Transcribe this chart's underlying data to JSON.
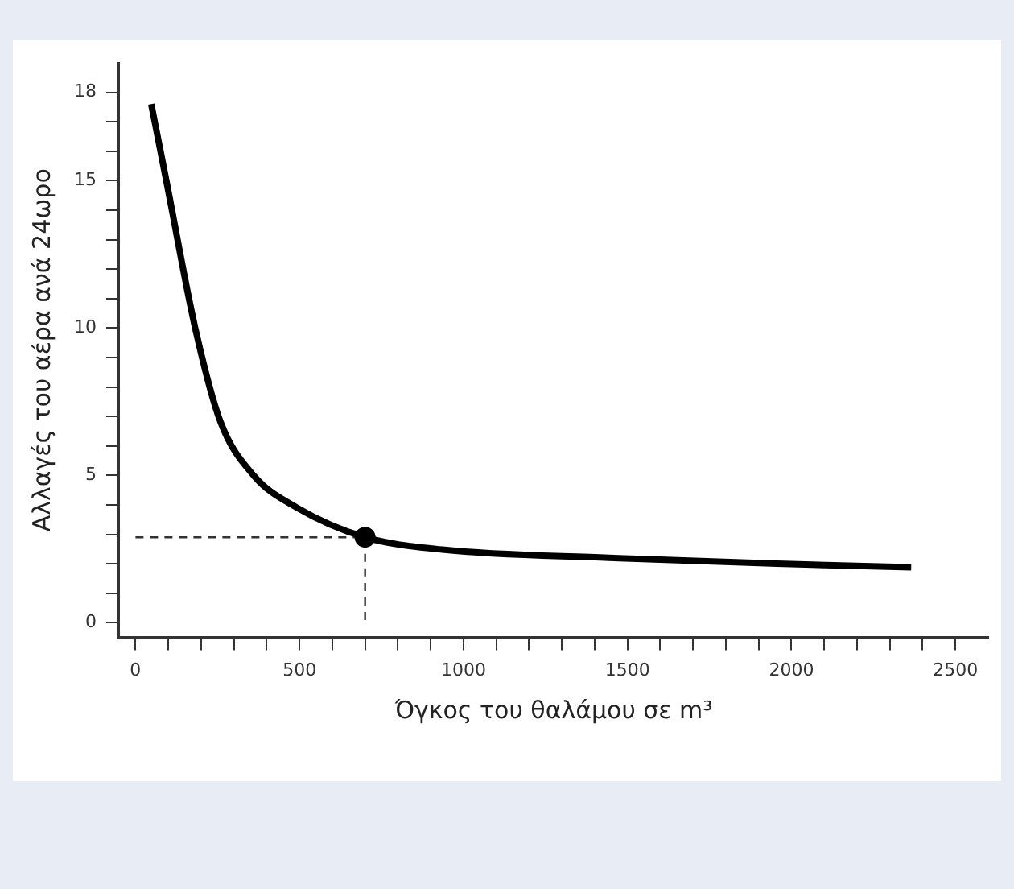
{
  "chart_data": {
    "type": "line",
    "xlabel": "Όγκος του θαλάμου σε m³",
    "ylabel": "Αλλαγές του αέρα ανά 24ωρο",
    "xlim": [
      -50,
      2600
    ],
    "ylim": [
      -0.5,
      19
    ],
    "xticks": [
      0,
      {
        "value": 100,
        "label": null
      },
      {
        "value": 200,
        "label": null
      },
      {
        "value": 300,
        "label": null
      },
      {
        "value": 400,
        "label": null
      },
      500,
      {
        "value": 600,
        "label": null
      },
      {
        "value": 700,
        "label": null
      },
      {
        "value": 800,
        "label": null
      },
      {
        "value": 900,
        "label": null
      },
      1000,
      {
        "value": 1100,
        "label": null
      },
      {
        "value": 1200,
        "label": null
      },
      {
        "value": 1300,
        "label": null
      },
      {
        "value": 1400,
        "label": null
      },
      1500,
      {
        "value": 1600,
        "label": null
      },
      {
        "value": 1700,
        "label": null
      },
      {
        "value": 1800,
        "label": null
      },
      {
        "value": 1900,
        "label": null
      },
      2000,
      {
        "value": 2100,
        "label": null
      },
      {
        "value": 2200,
        "label": null
      },
      {
        "value": 2300,
        "label": null
      },
      {
        "value": 2400,
        "label": null
      },
      2500
    ],
    "yticks": [
      0,
      {
        "value": 1,
        "label": null
      },
      {
        "value": 2,
        "label": null
      },
      {
        "value": 3,
        "label": null
      },
      {
        "value": 4,
        "label": null
      },
      5,
      {
        "value": 6,
        "label": null
      },
      {
        "value": 7,
        "label": null
      },
      {
        "value": 8,
        "label": null
      },
      {
        "value": 9,
        "label": null
      },
      10,
      {
        "value": 11,
        "label": null
      },
      {
        "value": 12,
        "label": null
      },
      {
        "value": 13,
        "label": null
      },
      {
        "value": 14,
        "label": null
      },
      15,
      {
        "value": 16,
        "label": null
      },
      {
        "value": 17,
        "label": null
      },
      18
    ],
    "grid": false,
    "legend": false,
    "series": [
      {
        "color": "#000000",
        "marker": "none",
        "line_style": "solid",
        "x": [
          48,
          94,
          182,
          258,
          360,
          493,
          700,
          936,
          1443,
          1956,
          2365
        ],
        "values": [
          17.6,
          15,
          10,
          6.85,
          5,
          3.9,
          2.9,
          2.48,
          2.2,
          2.0,
          1.88
        ]
      },
      {
        "type": "line",
        "color": "#333333",
        "marker": "none",
        "line_style": "dashed",
        "x": [
          0,
          700,
          700
        ],
        "values": [
          2.9,
          2.9,
          0
        ]
      },
      {
        "type": "scatter",
        "color": "#000000",
        "marker": "circle",
        "x": [
          700
        ],
        "values": [
          2.9
        ]
      }
    ]
  }
}
